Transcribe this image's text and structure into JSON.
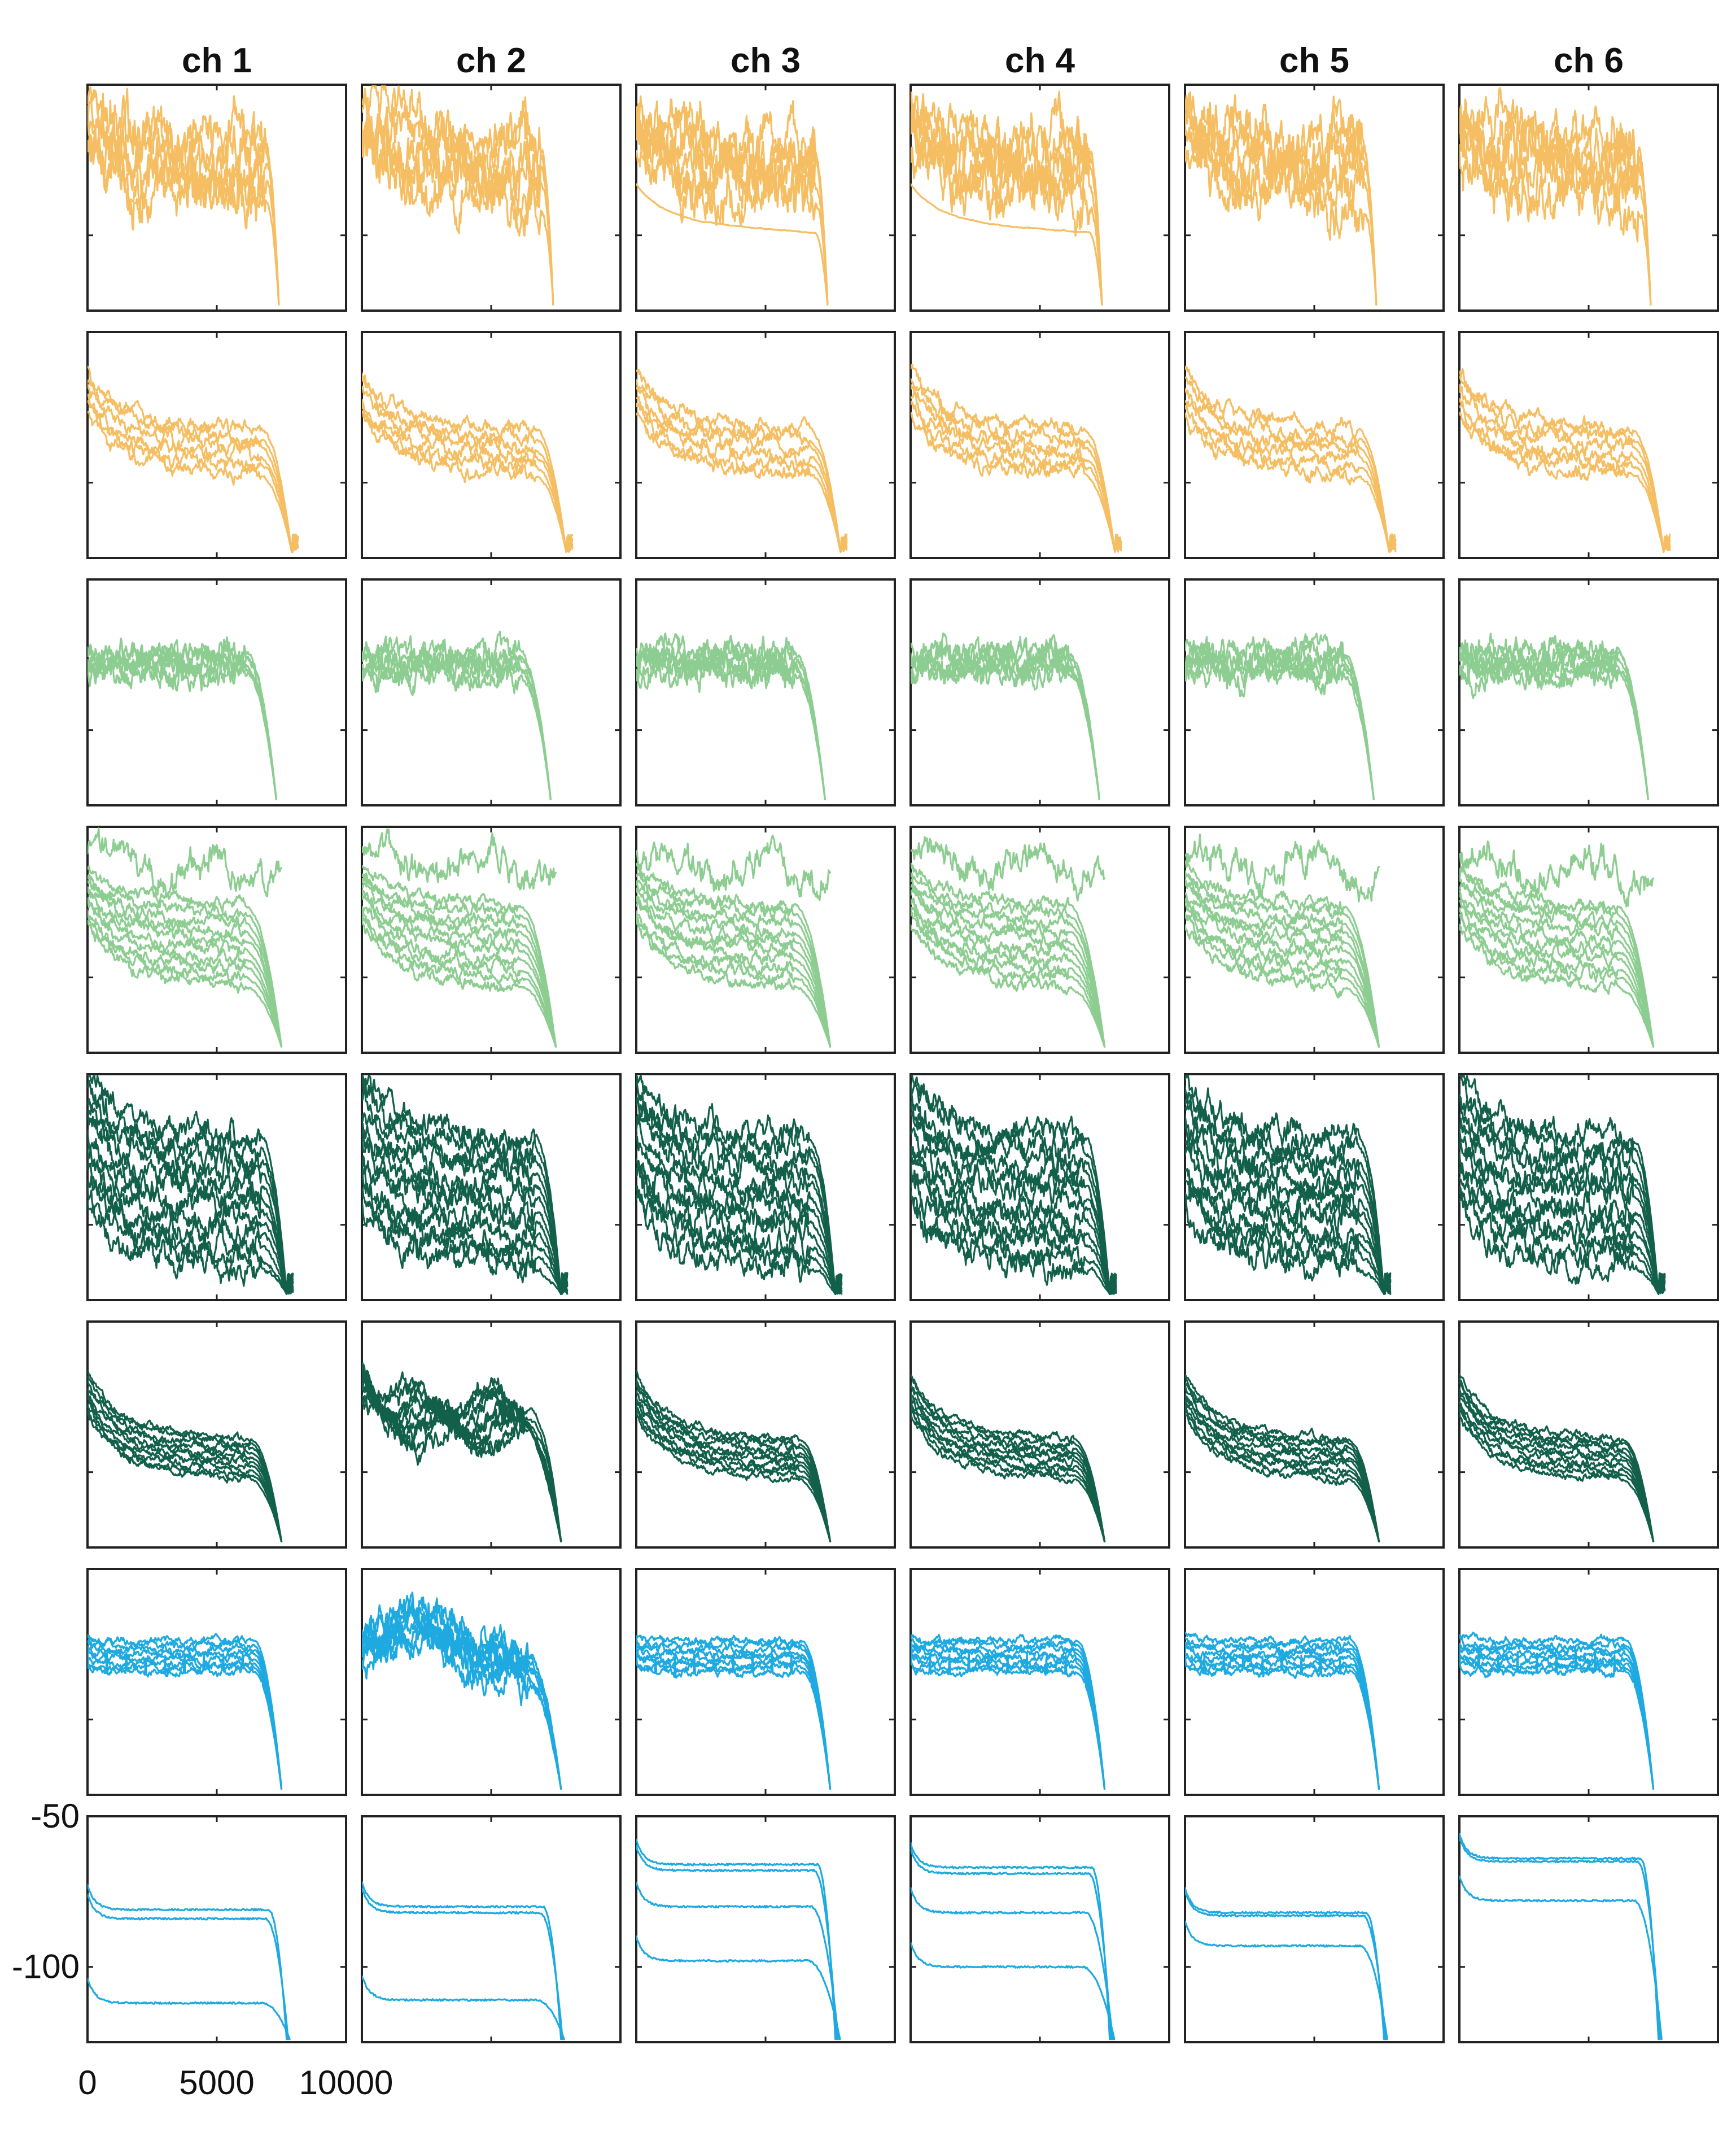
{
  "chart_data": {
    "type": "line",
    "layout": "small-multiples grid: 8 rows x 6 columns",
    "column_titles": [
      "ch 1",
      "ch 2",
      "ch 3",
      "ch 4",
      "ch 5",
      "ch 6"
    ],
    "xlim": [
      0,
      10000
    ],
    "ylim": [
      -125,
      -50
    ],
    "x_tick_labels": [
      "0",
      "5000",
      "10000"
    ],
    "y_tick_labels": [
      "-50",
      "-100"
    ],
    "tick_labels_shown_on": "bottom-left panel only",
    "grid": false,
    "legend": "none",
    "row_colors": [
      "#F5BE63",
      "#F5BE63",
      "#8DCD91",
      "#8DCD91",
      "#12604A",
      "#12604A",
      "#1EAAE0",
      "#1EAAE0"
    ],
    "panels": [
      {
        "row": 1,
        "shape": "noisy",
        "level": -78,
        "slope": 14,
        "noise": 10,
        "drop": 6900,
        "end": 7400,
        "tail": 0,
        "traces": 6,
        "spread": 3.5
      },
      {
        "row": 2,
        "shape": "decay",
        "level": -86,
        "slope": 16,
        "noise": 3,
        "drop": 6700,
        "end": 7900,
        "tail": 6,
        "traces": 6,
        "spread": 3
      },
      {
        "row": 3,
        "shape": "flat",
        "level": -78,
        "slope": 0,
        "noise": 5,
        "drop": 6100,
        "end": 7300,
        "tail": 0,
        "traces": 6,
        "spread": 1.5
      },
      {
        "row": 4,
        "shape": "mixed",
        "level": -86,
        "slope": 0,
        "noise": 2,
        "drop": 6100,
        "end": 7500,
        "tail": 0,
        "traces": 10,
        "spread": 3
      },
      {
        "row": 5,
        "shape": "decay",
        "level": -89,
        "slope": 18,
        "noise": 5,
        "drop": 6700,
        "end": 7700,
        "tail": 7,
        "traces": 12,
        "spread": 4
      },
      {
        "row": 6,
        "shape": "decay",
        "level": -92,
        "slope": 18,
        "noise": 1.5,
        "drop": 6300,
        "end": 7500,
        "tail": 0,
        "traces": 10,
        "spread": 1.5
      },
      {
        "row": 7,
        "shape": "flat-spike",
        "level": -79,
        "slope": 2,
        "noise": 1.5,
        "drop": 6400,
        "end": 7500,
        "tail": 0,
        "traces": 8,
        "spread": 1.5
      },
      {
        "row": 8,
        "shape": "steps",
        "level": -80,
        "slope": 0,
        "noise": 1,
        "drop": 7000,
        "end": 7700,
        "tail": 0,
        "traces": 4,
        "spread": 1
      }
    ],
    "panel_overrides": [
      {
        "row": 1,
        "col": 3,
        "extra_smooth_trace": -95
      },
      {
        "row": 1,
        "col": 4,
        "extra_smooth_trace": -95
      },
      {
        "row": 6,
        "col": 2,
        "shape": "bumpy",
        "level": -83,
        "noise": 4,
        "end": 7700
      },
      {
        "row": 7,
        "col": 2,
        "shape": "hump",
        "level": -70,
        "noise": 6,
        "end": 7700
      },
      {
        "row": 8,
        "col": 1,
        "step_levels": [
          -81,
          -84,
          -112
        ]
      },
      {
        "row": 8,
        "col": 2,
        "step_levels": [
          -80,
          -82,
          -111
        ]
      },
      {
        "row": 8,
        "col": 3,
        "step_levels": [
          -66,
          -68,
          -80,
          -98
        ]
      },
      {
        "row": 8,
        "col": 4,
        "step_levels": [
          -67,
          -69,
          -82,
          -100
        ]
      },
      {
        "row": 8,
        "col": 5,
        "step_levels": [
          -82,
          -83,
          -93
        ]
      },
      {
        "row": 8,
        "col": 6,
        "step_levels": [
          -64,
          -65,
          -78
        ]
      }
    ]
  }
}
